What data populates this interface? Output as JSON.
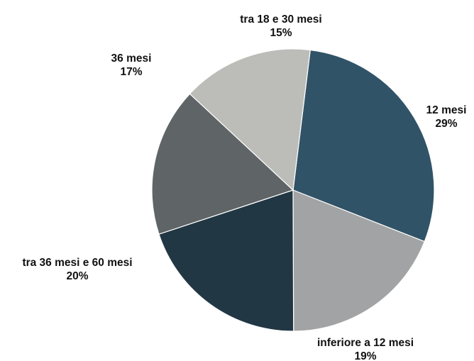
{
  "chart_data": {
    "type": "pie",
    "slices": [
      {
        "label": "12 mesi",
        "value": 29,
        "value_label": "29%",
        "color": "#315367"
      },
      {
        "label": "inferiore a 12 mesi",
        "value": 19,
        "value_label": "19%",
        "color": "#a2a3a4"
      },
      {
        "label": "tra 36 mesi e 60 mesi",
        "value": 20,
        "value_label": "20%",
        "color": "#223744"
      },
      {
        "label": "36 mesi",
        "value": 17,
        "value_label": "17%",
        "color": "#5f6467"
      },
      {
        "label": "tra 18 e 30 mesi",
        "value": 15,
        "value_label": "15%",
        "color": "#bcbcb8"
      }
    ]
  }
}
